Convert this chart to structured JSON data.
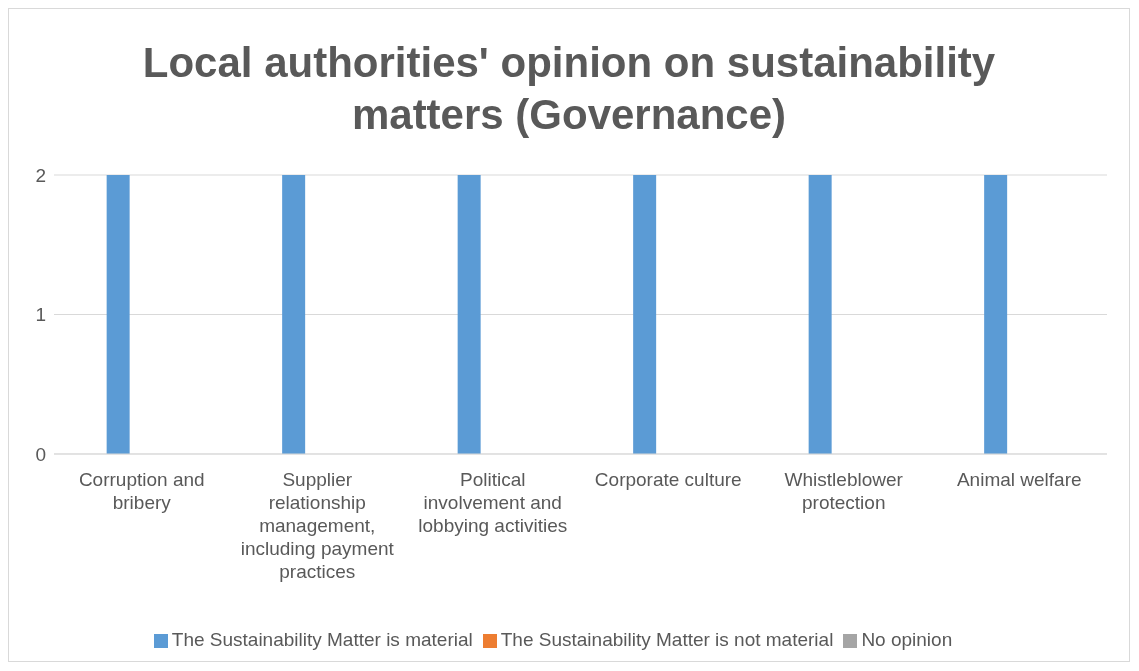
{
  "chart_data": {
    "type": "bar",
    "title": "Local authorities' opinion on sustainability matters  (Governance)",
    "categories": [
      "Corruption and bribery",
      "Supplier relationship management, including payment practices",
      "Political involvement and lobbying activities",
      "Corporate culture",
      "Whistleblower protection",
      "Animal welfare"
    ],
    "series": [
      {
        "name": "The Sustainability Matter is material",
        "color": "#5b9bd5",
        "values": [
          2,
          2,
          2,
          2,
          2,
          2
        ]
      },
      {
        "name": "The Sustainability Matter is not material",
        "color": "#ed7d31",
        "values": [
          0,
          0,
          0,
          0,
          0,
          0
        ]
      },
      {
        "name": "No opinion",
        "color": "#a5a5a5",
        "values": [
          0,
          0,
          0,
          0,
          0,
          0
        ]
      }
    ],
    "ylim": [
      0,
      2
    ],
    "yticks": [
      0,
      1,
      2
    ],
    "grid": "y",
    "legend": "bottom"
  }
}
